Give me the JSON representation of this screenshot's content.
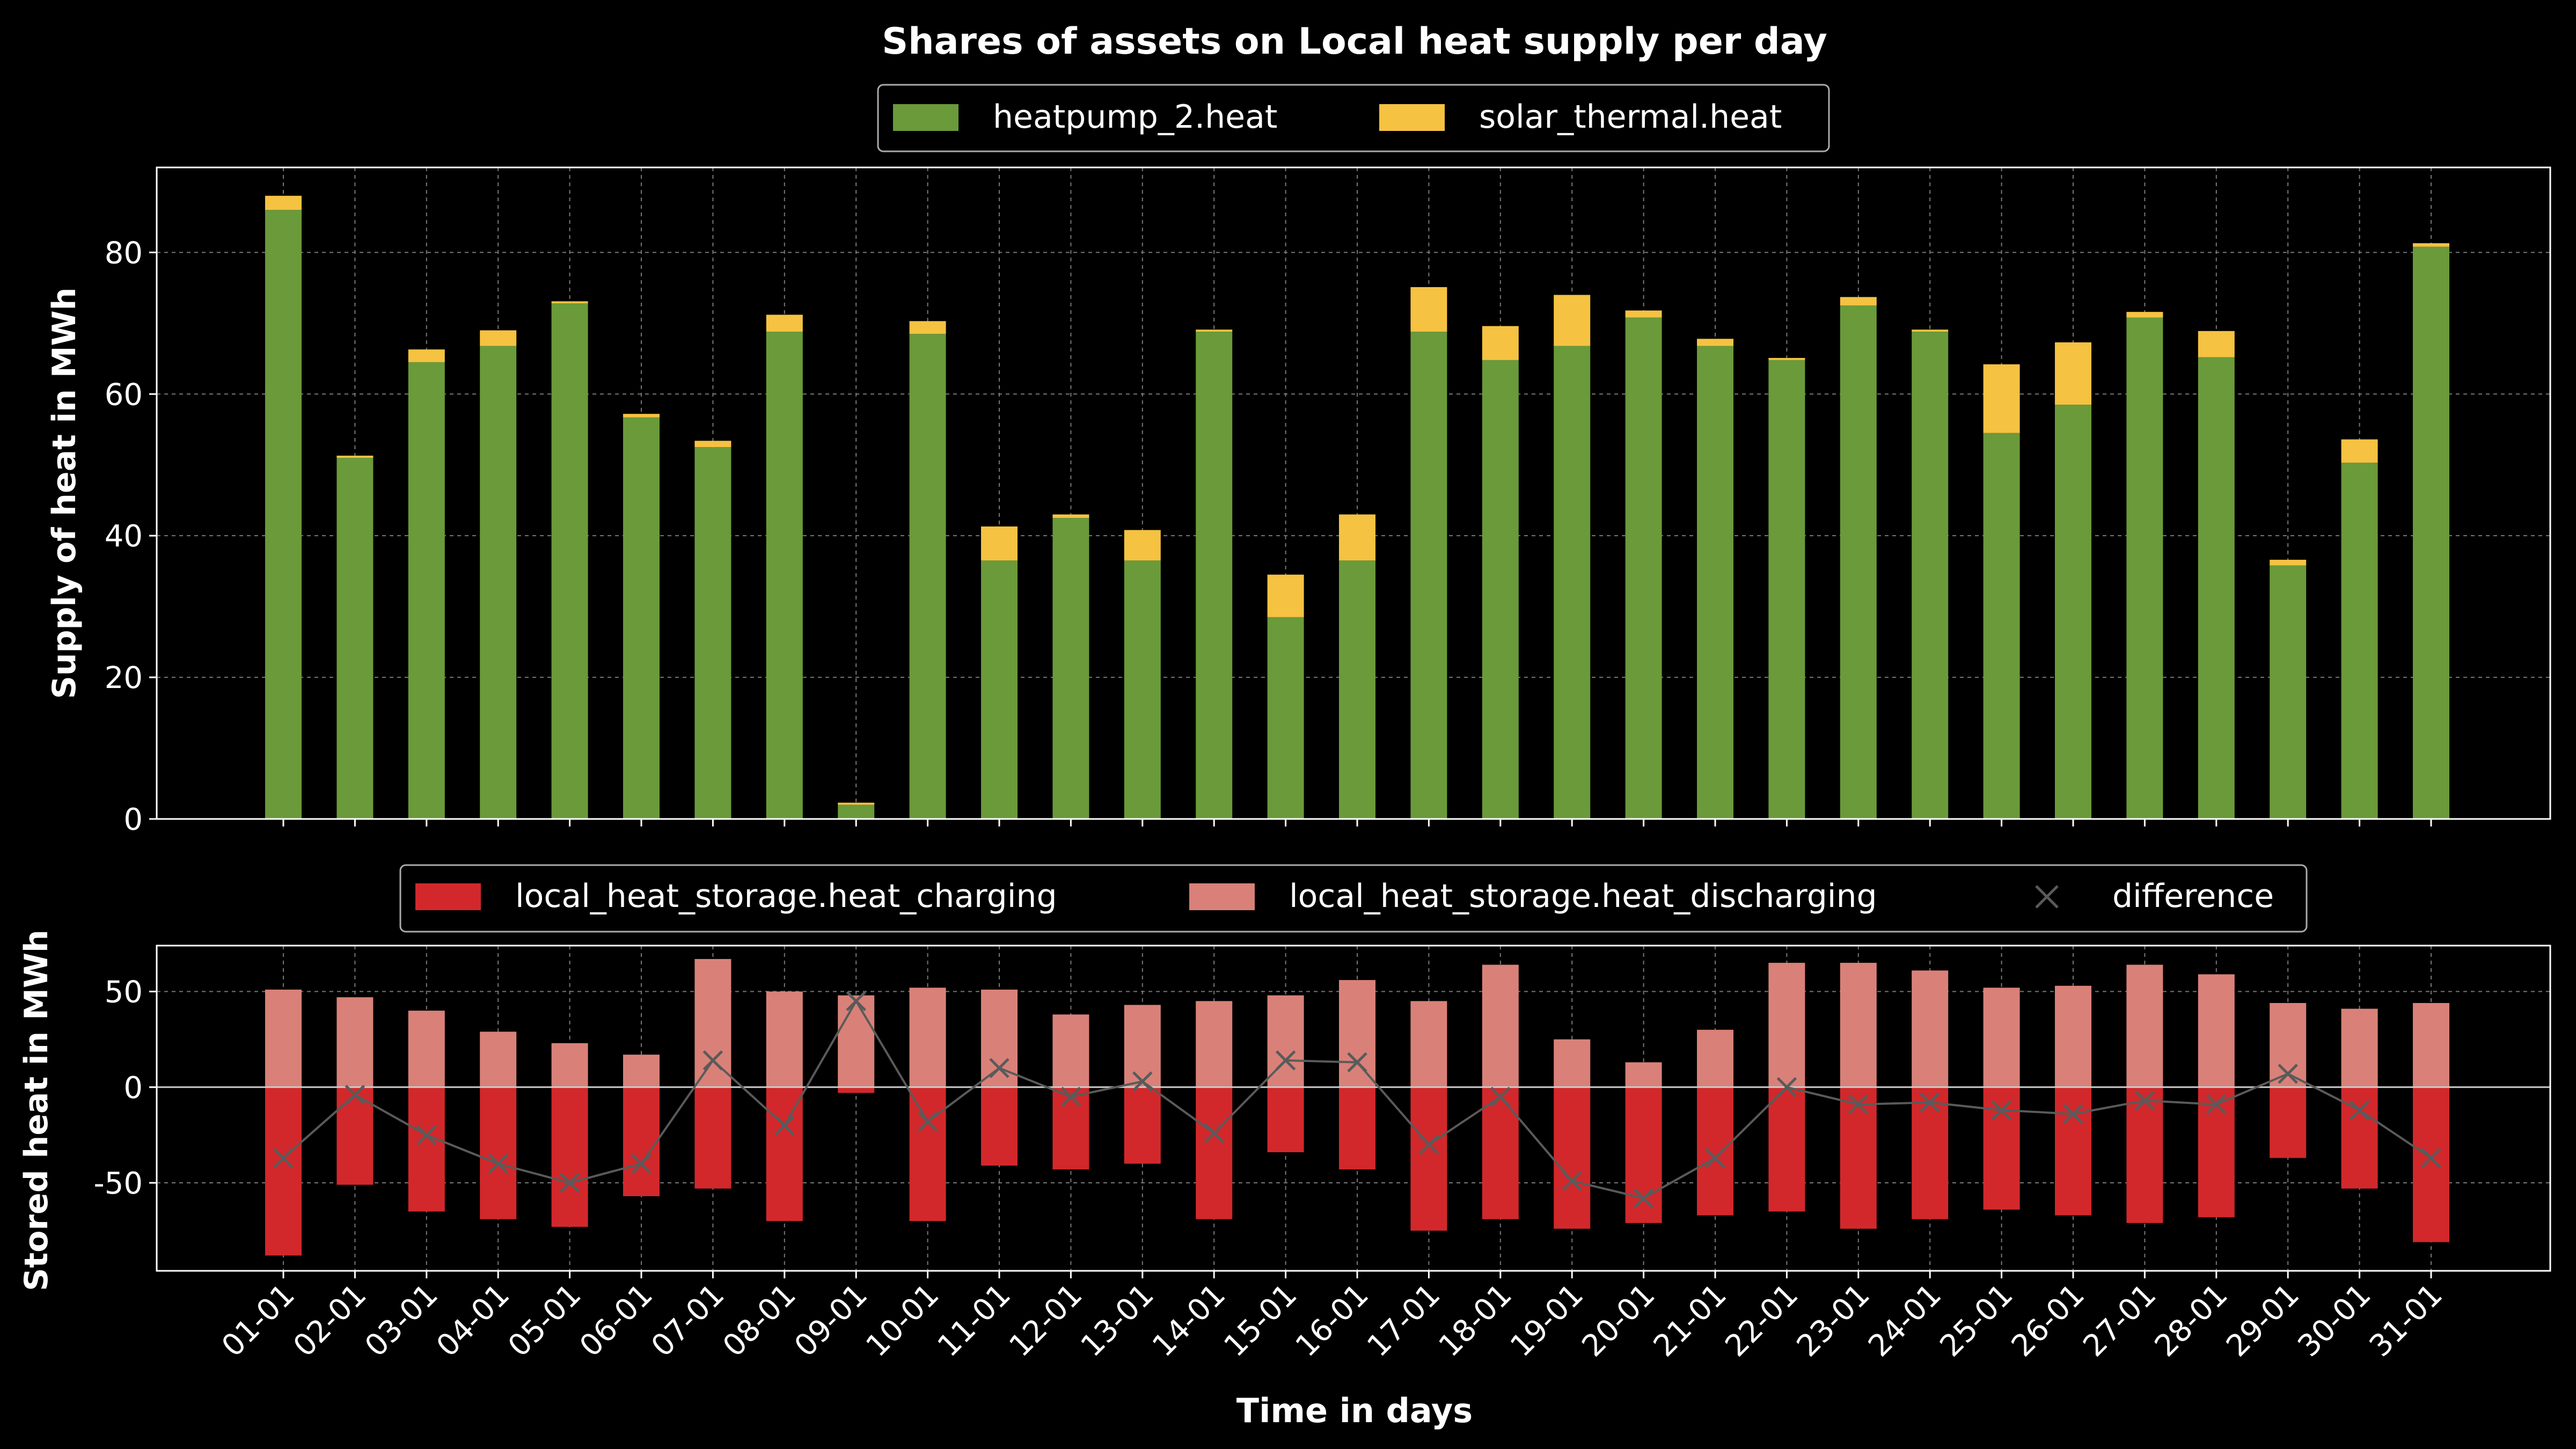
{
  "chart_data": [
    {
      "type": "bar",
      "stacked": true,
      "title": "Shares of assets on Local heat supply per day",
      "xlabel": "",
      "ylabel": "Supply of heat in MWh",
      "ylim": [
        0,
        92
      ],
      "yticks": [
        0,
        20,
        40,
        60,
        80
      ],
      "grid": true,
      "legend_position": "top-center",
      "categories": [
        "01-01",
        "02-01",
        "03-01",
        "04-01",
        "05-01",
        "06-01",
        "07-01",
        "08-01",
        "09-01",
        "10-01",
        "11-01",
        "12-01",
        "13-01",
        "14-01",
        "15-01",
        "16-01",
        "17-01",
        "18-01",
        "19-01",
        "20-01",
        "21-01",
        "22-01",
        "23-01",
        "24-01",
        "25-01",
        "26-01",
        "27-01",
        "28-01",
        "29-01",
        "30-01",
        "31-01"
      ],
      "series": [
        {
          "name": "heatpump_2.heat",
          "color": "#6a9a3a",
          "values": [
            86,
            51,
            64.5,
            66.8,
            72.8,
            56.7,
            52.5,
            68.8,
            2,
            68.5,
            36.5,
            42.5,
            36.5,
            68.8,
            28.5,
            36.5,
            68.8,
            64.8,
            66.8,
            70.8,
            66.8,
            64.8,
            72.5,
            68.8,
            54.5,
            58.5,
            70.8,
            65.2,
            35.8,
            50.3,
            80.8
          ]
        },
        {
          "name": "solar_thermal.heat",
          "color": "#f5c242",
          "values": [
            2,
            0.3,
            1.8,
            2.2,
            0.3,
            0.5,
            0.9,
            2.4,
            0.3,
            1.8,
            4.8,
            0.5,
            4.3,
            0.3,
            6,
            6.5,
            6.3,
            4.8,
            7.2,
            1,
            1,
            0.3,
            1.2,
            0.3,
            9.7,
            8.8,
            0.8,
            3.7,
            0.8,
            3.3,
            0.5
          ]
        }
      ]
    },
    {
      "type": "bar",
      "title": "",
      "xlabel": "Time in days",
      "ylabel": "Stored heat in MWh",
      "ylim": [
        -96,
        74
      ],
      "yticks": [
        -50,
        0,
        50
      ],
      "grid": true,
      "legend_position": "top-center",
      "categories": [
        "01-01",
        "02-01",
        "03-01",
        "04-01",
        "05-01",
        "06-01",
        "07-01",
        "08-01",
        "09-01",
        "10-01",
        "11-01",
        "12-01",
        "13-01",
        "14-01",
        "15-01",
        "16-01",
        "17-01",
        "18-01",
        "19-01",
        "20-01",
        "21-01",
        "22-01",
        "23-01",
        "24-01",
        "25-01",
        "26-01",
        "27-01",
        "28-01",
        "29-01",
        "30-01",
        "31-01"
      ],
      "series": [
        {
          "name": "local_heat_storage.heat_charging",
          "color": "#d2282b",
          "values": [
            -88,
            -51,
            -65,
            -69,
            -73,
            -57,
            -53,
            -70,
            -3,
            -70,
            -41,
            -43,
            -40,
            -69,
            -34,
            -43,
            -75,
            -69,
            -74,
            -71,
            -67,
            -65,
            -74,
            -69,
            -64,
            -67,
            -71,
            -68,
            -37,
            -53,
            -81
          ]
        },
        {
          "name": "local_heat_storage.heat_discharging",
          "color": "#d98178",
          "values": [
            51,
            47,
            40,
            29,
            23,
            17,
            67,
            50,
            48,
            52,
            51,
            38,
            43,
            45,
            48,
            56,
            45,
            64,
            25,
            13,
            30,
            65,
            65,
            61,
            52,
            53,
            64,
            59,
            44,
            41,
            44
          ]
        },
        {
          "name": "difference",
          "type": "line",
          "marker": "x",
          "color": "#5a5a5a",
          "values": [
            -37,
            -4,
            -25,
            -40,
            -50,
            -40,
            14,
            -20,
            45,
            -18,
            10,
            -5,
            3,
            -24,
            14,
            13,
            -30,
            -5,
            -49,
            -58,
            -37,
            0,
            -9,
            -8,
            -12,
            -14,
            -7,
            -9,
            7,
            -12,
            -37
          ]
        }
      ]
    }
  ]
}
